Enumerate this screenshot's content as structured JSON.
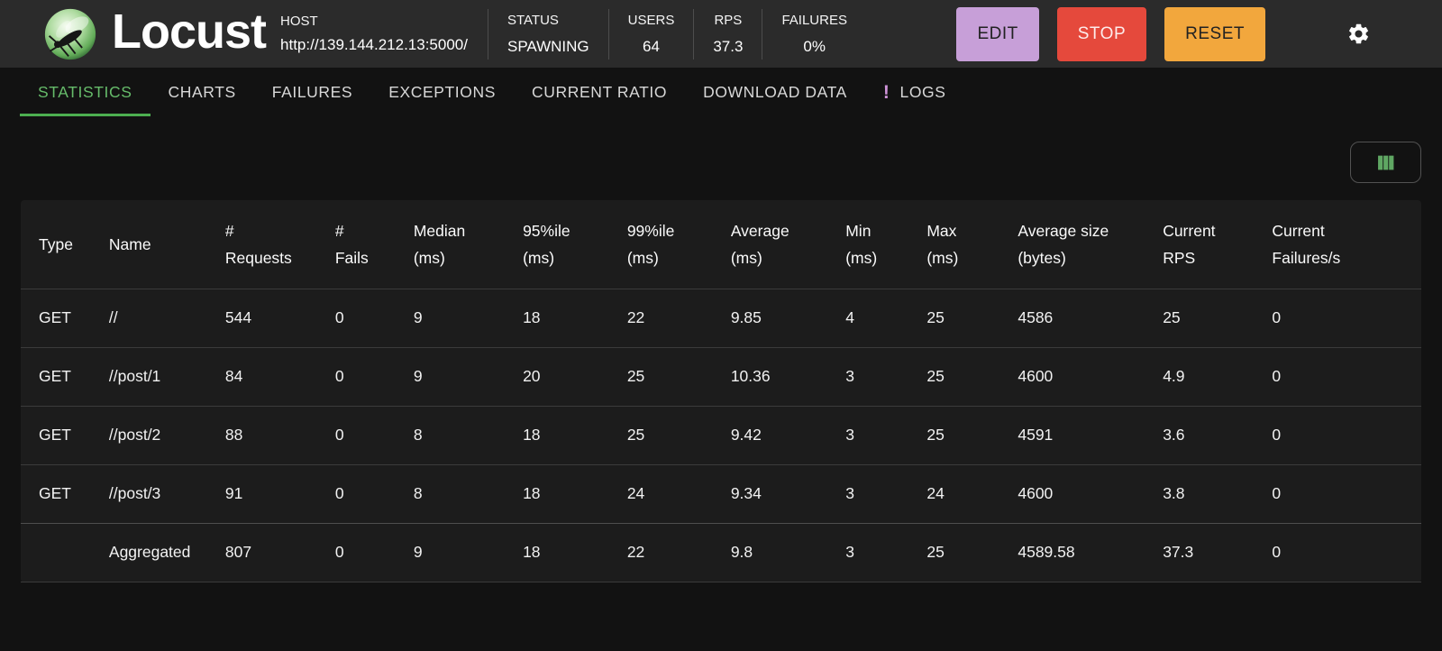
{
  "app": {
    "title": "Locust"
  },
  "topbar": {
    "host": {
      "label": "HOST",
      "value": "http://139.144.212.13:5000/"
    },
    "status": {
      "label": "STATUS",
      "value": "SPAWNING"
    },
    "users": {
      "label": "USERS",
      "value": "64"
    },
    "rps": {
      "label": "RPS",
      "value": "37.3"
    },
    "failures": {
      "label": "FAILURES",
      "value": "0%"
    },
    "buttons": {
      "edit": "EDIT",
      "stop": "STOP",
      "reset": "RESET"
    }
  },
  "icons": {
    "logo": "locust-logo",
    "settings": "gear-icon",
    "column_selector": "view-columns-icon",
    "logs_alert": "exclamation-badge"
  },
  "colors": {
    "accent_green": "#66bb6a",
    "tab_indicator": "#4caf50",
    "edit_button": "#c79fd8",
    "stop_button": "#e5493c",
    "reset_button": "#f2a73d",
    "logs_badge": "#ce93d8",
    "topbar_bg": "#2b2b2b",
    "page_bg": "#121212",
    "card_bg": "#1c1c1c"
  },
  "tabs": [
    {
      "label": "STATISTICS",
      "active": true
    },
    {
      "label": "CHARTS",
      "active": false
    },
    {
      "label": "FAILURES",
      "active": false
    },
    {
      "label": "EXCEPTIONS",
      "active": false
    },
    {
      "label": "CURRENT RATIO",
      "active": false
    },
    {
      "label": "DOWNLOAD DATA",
      "active": false
    },
    {
      "label": "LOGS",
      "active": false,
      "badge": "!"
    }
  ],
  "table": {
    "columns": [
      {
        "key": "type",
        "lines": [
          "Type"
        ]
      },
      {
        "key": "name",
        "lines": [
          "Name"
        ]
      },
      {
        "key": "requests",
        "lines": [
          "#",
          "Requests"
        ]
      },
      {
        "key": "fails",
        "lines": [
          "#",
          "Fails"
        ]
      },
      {
        "key": "median",
        "lines": [
          "Median",
          "(ms)"
        ]
      },
      {
        "key": "p95",
        "lines": [
          "95%ile",
          "(ms)"
        ]
      },
      {
        "key": "p99",
        "lines": [
          "99%ile",
          "(ms)"
        ]
      },
      {
        "key": "average",
        "lines": [
          "Average",
          "(ms)"
        ]
      },
      {
        "key": "min",
        "lines": [
          "Min",
          "(ms)"
        ]
      },
      {
        "key": "max",
        "lines": [
          "Max",
          "(ms)"
        ]
      },
      {
        "key": "avg-size",
        "lines": [
          "Average size",
          "(bytes)"
        ]
      },
      {
        "key": "current-rps",
        "lines": [
          "Current",
          "RPS"
        ]
      },
      {
        "key": "current-failures",
        "lines": [
          "Current",
          "Failures/s"
        ]
      }
    ],
    "rows": [
      [
        "GET",
        "//",
        "544",
        "0",
        "9",
        "18",
        "22",
        "9.85",
        "4",
        "25",
        "4586",
        "25",
        "0"
      ],
      [
        "GET",
        "//post/1",
        "84",
        "0",
        "9",
        "20",
        "25",
        "10.36",
        "3",
        "25",
        "4600",
        "4.9",
        "0"
      ],
      [
        "GET",
        "//post/2",
        "88",
        "0",
        "8",
        "18",
        "25",
        "9.42",
        "3",
        "25",
        "4591",
        "3.6",
        "0"
      ],
      [
        "GET",
        "//post/3",
        "91",
        "0",
        "8",
        "18",
        "24",
        "9.34",
        "3",
        "24",
        "4600",
        "3.8",
        "0"
      ]
    ],
    "aggregated": [
      "",
      "Aggregated",
      "807",
      "0",
      "9",
      "18",
      "22",
      "9.8",
      "3",
      "25",
      "4589.58",
      "37.3",
      "0"
    ]
  }
}
